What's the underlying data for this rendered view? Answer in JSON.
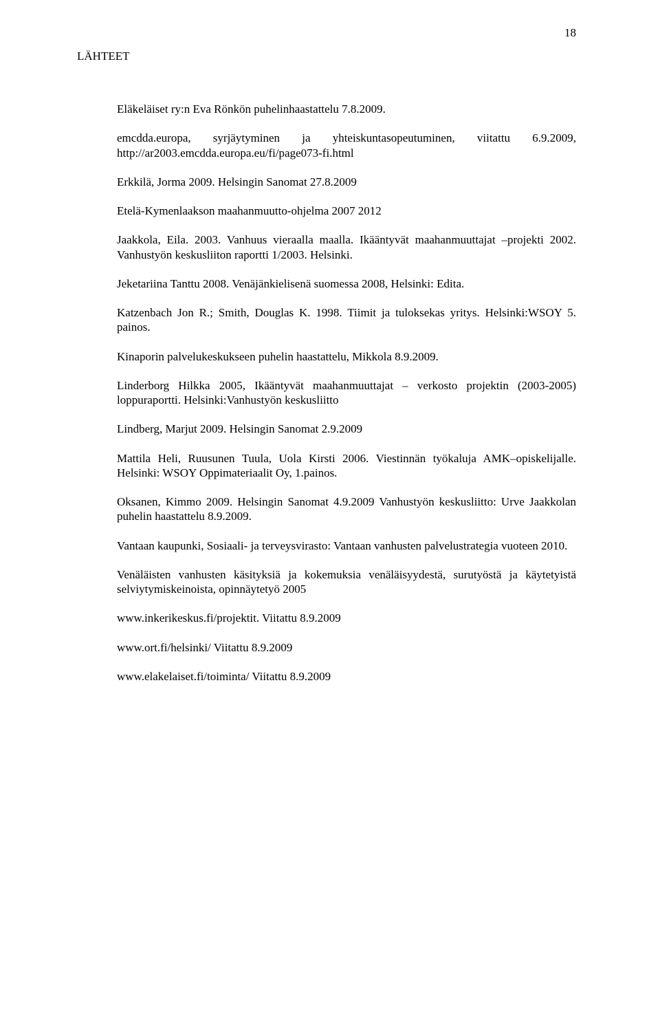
{
  "page_number": "18",
  "section_title": "LÄHTEET",
  "refs": [
    "Eläkeläiset ry:n Eva Rönkön puhelinhaastattelu 7.8.2009.",
    "emcdda.europa, syrjäytyminen ja yhteiskuntasopeutuminen, viitattu 6.9.2009, http://ar2003.emcdda.europa.eu/fi/page073-fi.html",
    "Erkkilä, Jorma 2009. Helsingin Sanomat 27.8.2009",
    "Etelä-Kymenlaakson maahanmuutto-ohjelma 2007 2012",
    "Jaakkola, Eila. 2003. Vanhuus vieraalla maalla. Ikääntyvät maahanmuuttajat –projekti 2002. Vanhustyön keskusliiton raportti 1/2003. Helsinki.",
    "Jeketariina Tanttu 2008. Venäjänkielisenä suomessa 2008, Helsinki: Edita.",
    "Katzenbach Jon R.; Smith, Douglas K. 1998. Tiimit ja tuloksekas yritys. Helsinki:WSOY 5. painos.",
    "Kinaporin palvelukeskukseen puhelin haastattelu, Mikkola 8.9.2009.",
    "Linderborg Hilkka 2005, Ikääntyvät maahanmuuttajat – verkosto projektin (2003-2005) loppuraportti. Helsinki:Vanhustyön keskusliitto",
    "Lindberg, Marjut 2009. Helsingin Sanomat 2.9.2009",
    "Mattila Heli, Ruusunen Tuula, Uola Kirsti 2006. Viestinnän työkaluja AMK–opiskelijalle. Helsinki: WSOY Oppimateriaalit Oy, 1.painos.",
    "Oksanen, Kimmo 2009. Helsingin Sanomat 4.9.2009\nVanhustyön keskusliitto: Urve Jaakkolan puhelin haastattelu 8.9.2009.",
    "Vantaan kaupunki, Sosiaali- ja terveysvirasto: Vantaan vanhusten palvelustrategia vuoteen 2010.",
    "Venäläisten vanhusten käsityksiä ja kokemuksia venäläisyydestä, surutyöstä ja käytetyistä selviytymiskeinoista, opinnäytetyö 2005",
    "www.inkerikeskus.fi/projektit. Viitattu 8.9.2009",
    "www.ort.fi/helsinki/ Viitattu 8.9.2009",
    "www.elakelaiset.fi/toiminta/ Viitattu 8.9.2009"
  ]
}
